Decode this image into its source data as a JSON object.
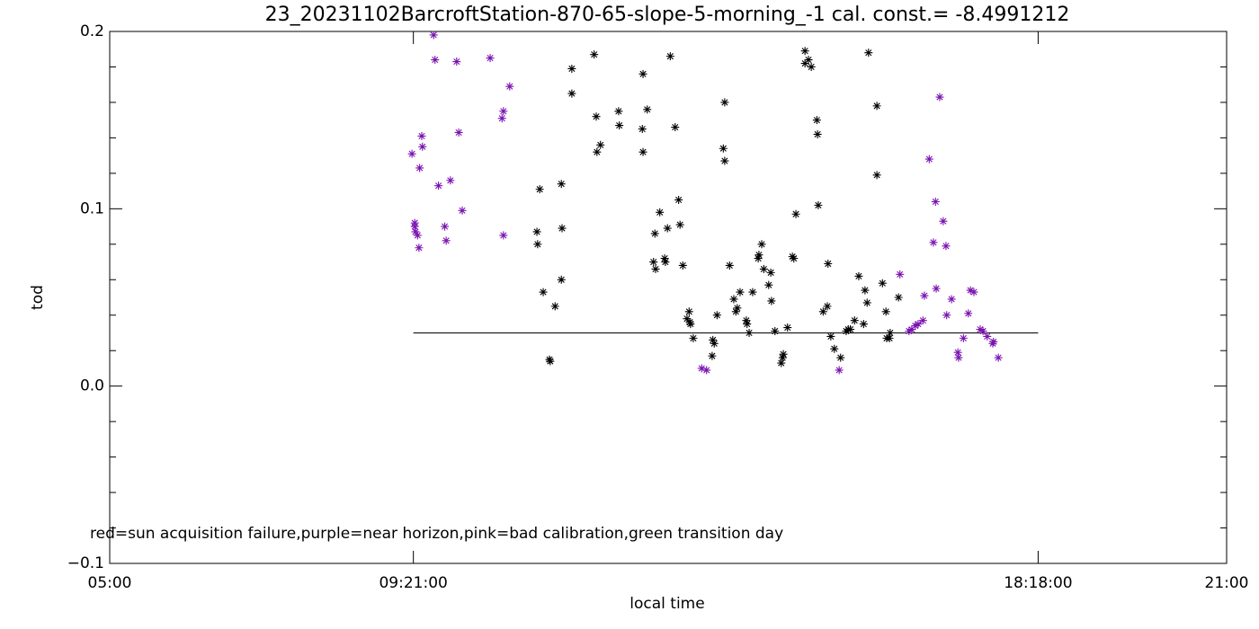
{
  "chart_data": {
    "type": "scatter",
    "title": "23_20231102BarcroftStation-870-65-slope-5-morning_-1 cal. const.= -8.4991212",
    "x_label": "local time",
    "y_label": "tod",
    "annotation": "red=sun acquisition failure,purple=near horizon,pink=bad calibration,green transition day",
    "xlim": [
      5,
      21
    ],
    "xticks": [
      {
        "value": 5,
        "label": "05:00"
      },
      {
        "value": 9.35,
        "label": "09:21:00"
      },
      {
        "value": 18.3,
        "label": "18:18:00"
      },
      {
        "value": 21,
        "label": "21:00"
      }
    ],
    "ylim": [
      -0.1,
      0.2
    ],
    "yticks": [
      {
        "value": -0.1,
        "label": "−0.1"
      },
      {
        "value": 0,
        "label": "0.0"
      },
      0.1,
      0.2
    ],
    "yminor_ticks": [
      -0.08,
      -0.06,
      -0.04,
      -0.02,
      0.02,
      0.04,
      0.06,
      0.08,
      0.12,
      0.14,
      0.16,
      0.18
    ],
    "reference_line": {
      "value": 0.03,
      "xlim": [
        9.35,
        18.3
      ],
      "color": "#000000"
    },
    "series": [
      {
        "color": "#000000",
        "x": [
          11.16,
          11.12,
          11.13,
          11.21,
          11.3,
          11.31,
          11.38,
          11.47,
          11.48,
          11.47,
          11.62,
          11.62,
          11.94,
          11.97,
          11.98,
          12.03,
          12.29,
          12.3,
          12.64,
          12.63,
          12.64,
          12.7,
          12.81,
          12.79,
          12.82,
          12.88,
          12.95,
          12.96,
          12.99,
          13.03,
          13.1,
          13.15,
          13.17,
          13.21,
          13.27,
          13.3,
          13.32,
          13.36,
          13.31,
          13.63,
          13.64,
          13.66,
          13.7,
          13.81,
          13.79,
          13.81,
          13.88,
          13.94,
          13.97,
          13.99,
          14.03,
          14.12,
          14.13,
          14.16,
          14.21,
          14.29,
          14.3,
          14.34,
          14.37,
          14.44,
          14.47,
          14.48,
          14.53,
          14.62,
          14.64,
          14.65,
          14.71,
          14.78,
          14.8,
          14.83,
          14.96,
          14.96,
          15.01,
          15.05,
          15.13,
          15.14,
          15.15,
          15.22,
          15.28,
          15.29,
          15.33,
          15.38,
          15.47,
          15.55,
          15.58,
          15.61,
          15.67,
          15.73,
          15.8,
          15.82,
          15.85,
          15.87,
          15.99,
          15.99,
          16.07,
          16.12,
          16.13,
          16.17,
          16.18,
          16.3
        ],
        "values": [
          0.111,
          0.087,
          0.08,
          0.053,
          0.015,
          0.014,
          0.045,
          0.114,
          0.089,
          0.06,
          0.179,
          0.165,
          0.187,
          0.152,
          0.132,
          0.136,
          0.155,
          0.147,
          0.176,
          0.145,
          0.132,
          0.156,
          0.086,
          0.07,
          0.066,
          0.098,
          0.072,
          0.07,
          0.089,
          0.186,
          0.146,
          0.105,
          0.091,
          0.068,
          0.038,
          0.042,
          0.035,
          0.027,
          0.036,
          0.017,
          0.026,
          0.024,
          0.04,
          0.16,
          0.134,
          0.127,
          0.068,
          0.049,
          0.042,
          0.044,
          0.053,
          0.037,
          0.035,
          0.03,
          0.053,
          0.072,
          0.074,
          0.08,
          0.066,
          0.057,
          0.064,
          0.048,
          0.031,
          0.013,
          0.016,
          0.018,
          0.033,
          0.073,
          0.072,
          0.097,
          0.189,
          0.182,
          0.184,
          0.18,
          0.15,
          0.142,
          0.102,
          0.042,
          0.045,
          0.069,
          0.028,
          0.021,
          0.016,
          0.031,
          0.032,
          0.032,
          0.037,
          0.062,
          0.035,
          0.054,
          0.047,
          0.188,
          0.158,
          0.119,
          0.058,
          0.042,
          0.027,
          0.027,
          0.03,
          0.05
        ]
      },
      {
        "color": "#7a12b0",
        "x": [
          9.33,
          9.37,
          9.37,
          9.38,
          9.41,
          9.43,
          9.44,
          9.47,
          9.48,
          9.64,
          9.66,
          9.71,
          9.8,
          9.82,
          9.88,
          9.97,
          10.0,
          10.05,
          10.45,
          10.62,
          10.64,
          10.64,
          10.73,
          13.48,
          13.55,
          15.45,
          16.32,
          16.45,
          16.49,
          16.54,
          16.58,
          16.65,
          16.67,
          16.74,
          16.8,
          16.83,
          16.84,
          16.89,
          16.94,
          16.98,
          16.99,
          17.06,
          17.15,
          17.16,
          17.23,
          17.3,
          17.33,
          17.38,
          17.47,
          17.51,
          17.57,
          17.65,
          17.66,
          17.73
        ],
        "values": [
          0.131,
          0.092,
          0.09,
          0.087,
          0.085,
          0.078,
          0.123,
          0.141,
          0.135,
          0.198,
          0.184,
          0.113,
          0.09,
          0.082,
          0.116,
          0.183,
          0.143,
          0.099,
          0.185,
          0.151,
          0.155,
          0.085,
          0.169,
          0.01,
          0.009,
          0.009,
          0.063,
          0.031,
          0.032,
          0.034,
          0.035,
          0.037,
          0.051,
          0.128,
          0.081,
          0.104,
          0.055,
          0.163,
          0.093,
          0.079,
          0.04,
          0.049,
          0.019,
          0.016,
          0.027,
          0.041,
          0.054,
          0.053,
          0.032,
          0.031,
          0.028,
          0.024,
          0.025,
          0.016
        ]
      }
    ]
  }
}
